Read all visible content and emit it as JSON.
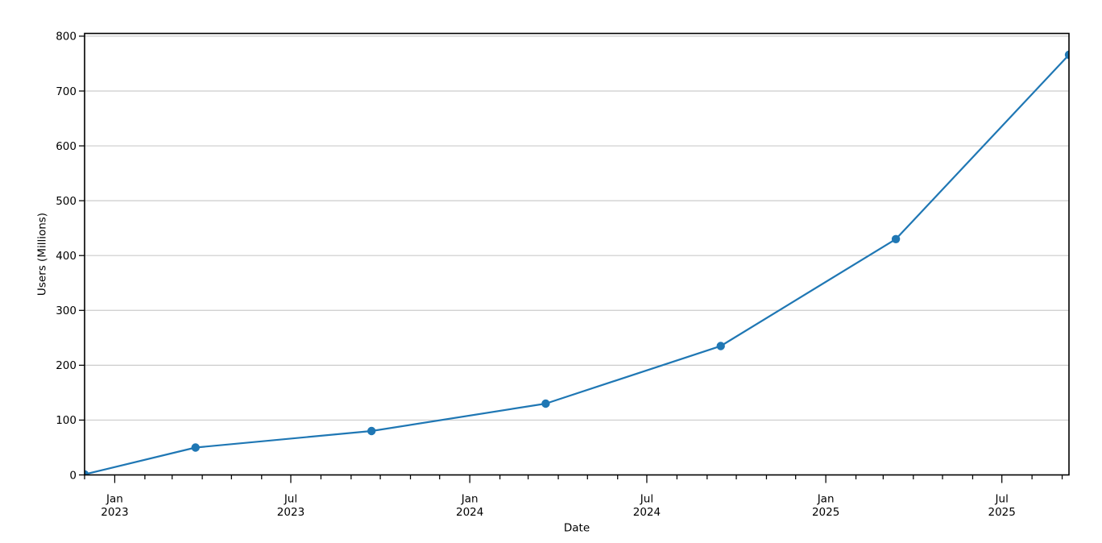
{
  "chart_data": {
    "type": "line",
    "title": "",
    "xlabel": "Date",
    "ylabel": "Users (Millions)",
    "grid": "horizontal-only",
    "legend": "none",
    "x_range": [
      "2022-12-01",
      "2025-09-08"
    ],
    "ylim": [
      0,
      805
    ],
    "yticks": [
      0,
      100,
      200,
      300,
      400,
      500,
      600,
      700,
      800
    ],
    "ytick_labels": [
      "0",
      "100",
      "200",
      "300",
      "400",
      "500",
      "600",
      "700",
      "800"
    ],
    "x_major_ticks": [
      {
        "date": "2023-01-01",
        "line1": "Jan",
        "line2": "2023"
      },
      {
        "date": "2023-07-01",
        "line1": "Jul",
        "line2": "2023"
      },
      {
        "date": "2024-01-01",
        "line1": "Jan",
        "line2": "2024"
      },
      {
        "date": "2024-07-01",
        "line1": "Jul",
        "line2": "2024"
      },
      {
        "date": "2025-01-01",
        "line1": "Jan",
        "line2": "2025"
      },
      {
        "date": "2025-07-01",
        "line1": "Jul",
        "line2": "2025"
      }
    ],
    "x_minor_tick_interval": "monthly",
    "series": [
      {
        "name": "Users (Millions)",
        "color": "#1f77b4",
        "marker": "circle",
        "points": [
          {
            "date": "2022-12-01",
            "value": 1
          },
          {
            "date": "2023-03-25",
            "value": 50
          },
          {
            "date": "2023-09-22",
            "value": 80
          },
          {
            "date": "2024-03-19",
            "value": 130
          },
          {
            "date": "2024-09-15",
            "value": 235
          },
          {
            "date": "2025-03-14",
            "value": 430
          },
          {
            "date": "2025-09-08",
            "value": 766
          }
        ]
      }
    ],
    "colors": {
      "line": "#1f77b4",
      "grid": "#cccccc",
      "spine": "#000000",
      "text": "#000000",
      "background": "#ffffff"
    }
  }
}
